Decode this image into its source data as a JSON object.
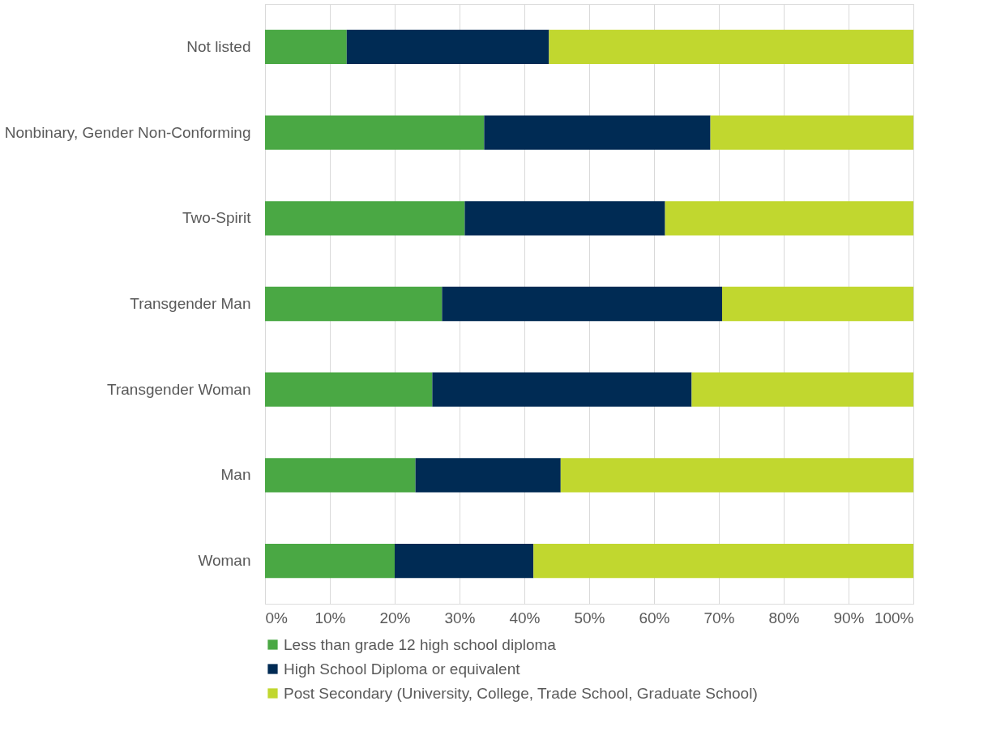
{
  "chart_data": {
    "type": "bar",
    "orientation": "horizontal",
    "stacked": true,
    "categories": [
      "Not listed",
      "Nonbinary, Gender Non-Conforming",
      "Two-Spirit",
      "Transgender Man",
      "Transgender Woman",
      "Man",
      "Woman"
    ],
    "series": [
      {
        "name": "Less than grade 12 high school diploma",
        "color": "#4aa844",
        "values": [
          12.6,
          33.8,
          30.8,
          27.3,
          25.8,
          23.2,
          20.0
        ]
      },
      {
        "name": "High School Diploma or equivalent",
        "color": "#002b54",
        "values": [
          31.2,
          34.9,
          30.9,
          43.2,
          40.0,
          22.4,
          21.4
        ]
      },
      {
        "name": "Post Secondary (University, College, Trade School, Graduate School)",
        "color": "#c1d72f",
        "values": [
          56.2,
          31.3,
          38.3,
          29.5,
          34.2,
          54.4,
          58.6
        ]
      }
    ],
    "xlim": [
      0,
      100
    ],
    "xticks": [
      {
        "value": 0,
        "label": "0%"
      },
      {
        "value": 10,
        "label": "10%"
      },
      {
        "value": 20,
        "label": "20%"
      },
      {
        "value": 30,
        "label": "30%"
      },
      {
        "value": 40,
        "label": "40%"
      },
      {
        "value": 50,
        "label": "50%"
      },
      {
        "value": 60,
        "label": "60%"
      },
      {
        "value": 70,
        "label": "70%"
      },
      {
        "value": 80,
        "label": "80%"
      },
      {
        "value": 90,
        "label": "90%"
      },
      {
        "value": 100,
        "label": "100%"
      }
    ],
    "grid": "x",
    "legend": "bottom"
  }
}
